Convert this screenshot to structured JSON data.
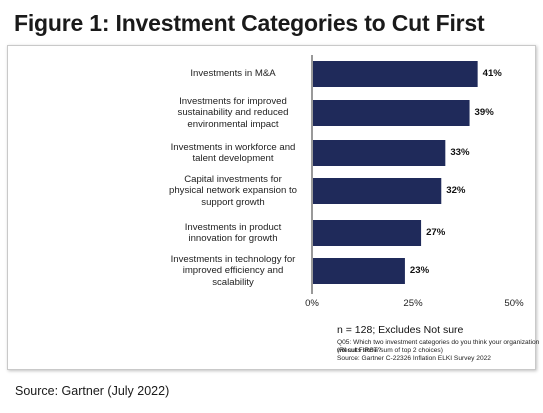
{
  "title": "Figure 1: Investment Categories to Cut First",
  "source": "Source: Gartner (July 2022)",
  "notes": {
    "main": "n = 128; Excludes Not sure",
    "lines": [
      "Q05: Which two investment categories do you think your organization will cut FIRST?",
      "(Results show sum of top 2 choices)",
      "Source: Gartner C-22326 Inflation ELKI Survey 2022"
    ]
  },
  "colors": {
    "bar": "#1f2a5a",
    "axis": "#333333"
  },
  "chart_data": {
    "type": "bar",
    "orientation": "horizontal",
    "categories": [
      [
        "Investments in M&A"
      ],
      [
        "Investments for improved",
        "sustainability and reduced",
        "environmental impact"
      ],
      [
        "Investments in workforce and",
        "talent development"
      ],
      [
        "Capital investments for",
        "physical network expansion to",
        "support growth"
      ],
      [
        "Investments in product",
        "innovation for growth"
      ],
      [
        "Investments in technology for",
        "improved efficiency and",
        "scalability"
      ]
    ],
    "values": [
      41,
      39,
      33,
      32,
      27,
      23
    ],
    "value_labels": [
      "41%",
      "39%",
      "33%",
      "32%",
      "27%",
      "23%"
    ],
    "xticks": [
      0,
      25,
      50
    ],
    "xtick_labels": [
      "0%",
      "25%",
      "50%"
    ],
    "xlim": [
      0,
      50
    ],
    "grid": false,
    "legend": false
  }
}
